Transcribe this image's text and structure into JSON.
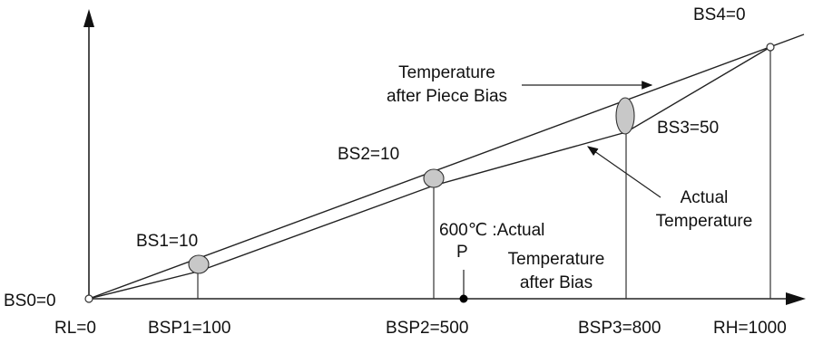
{
  "labels": {
    "bs0": "BS0=0",
    "bs1": "BS1=10",
    "bs2": "BS2=10",
    "bs3": "BS3=50",
    "bs4": "BS4=0",
    "temp_after_piece_bias_line1": "Temperature",
    "temp_after_piece_bias_line2": "after Piece Bias",
    "actual_temp_line1": "Actual",
    "actual_temp_line2": "Temperature",
    "note_line1": "600℃ :Actual",
    "note_p": "P",
    "note_line2": "Temperature",
    "note_line3": "after Bias"
  },
  "x_axis_ticks": {
    "rl": "RL=0",
    "bsp1": "BSP1=100",
    "bsp2": "BSP2=500",
    "bsp3": "BSP3=800",
    "rh": "RH=1000"
  },
  "colors": {
    "line": "#2a2a2a",
    "ellipse_fill": "#c8c8c8",
    "point": "#000000"
  }
}
